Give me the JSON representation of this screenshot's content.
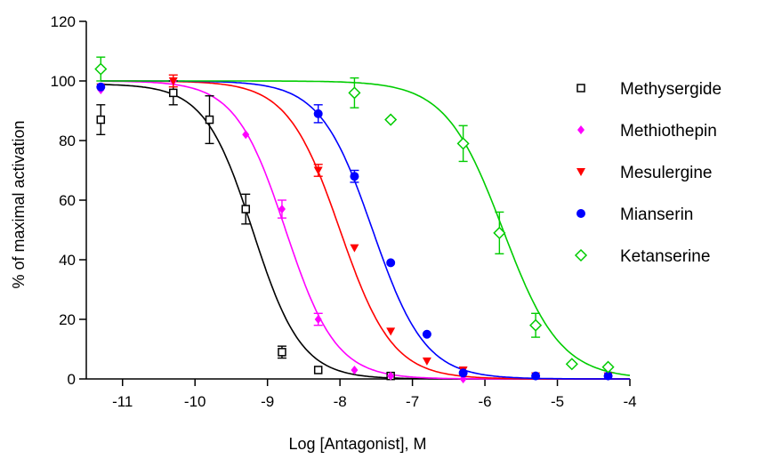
{
  "chart_data": {
    "type": "scatter",
    "xlabel": "Log [Antagonist], M",
    "ylabel": "% of maximal activation",
    "xlim": [
      -11.5,
      -4
    ],
    "ylim": [
      0,
      120
    ],
    "xticks": [
      -11,
      -10,
      -9,
      -8,
      -7,
      -6,
      -5,
      -4
    ],
    "yticks": [
      0,
      20,
      40,
      60,
      80,
      100,
      120
    ],
    "grid": false,
    "legend_position": "right",
    "series": [
      {
        "name": "Methysergide",
        "color": "#000000",
        "marker": "open-square",
        "x": [
          -11.3,
          -10.3,
          -9.8,
          -9.3,
          -8.8,
          -8.3,
          -7.3
        ],
        "y": [
          87,
          96,
          87,
          57,
          9,
          3,
          1
        ],
        "err": [
          5,
          4,
          8,
          5,
          2,
          0,
          0
        ],
        "fit_curve": {
          "top": 99,
          "bottom": 0,
          "log_ic50": -9.2,
          "hill": 1.3
        }
      },
      {
        "name": "Methiothepin",
        "color": "#ff00ff",
        "marker": "diamond",
        "x": [
          -11.3,
          -10.3,
          -9.3,
          -8.8,
          -8.3,
          -7.8,
          -7.3,
          -6.3
        ],
        "y": [
          97,
          100,
          82,
          57,
          20,
          3,
          1,
          0
        ],
        "err": [
          0,
          0,
          0,
          3,
          2,
          0,
          0,
          0
        ],
        "fit_curve": {
          "top": 100,
          "bottom": 0,
          "log_ic50": -8.75,
          "hill": 1.25
        }
      },
      {
        "name": "Mesulergine",
        "color": "#ff0000",
        "marker": "triangle-down",
        "x": [
          -11.3,
          -10.3,
          -8.3,
          -7.8,
          -7.3,
          -6.8,
          -6.3,
          -5.3,
          -4.3
        ],
        "y": [
          98,
          100,
          70,
          44,
          16,
          6,
          3,
          1,
          1
        ],
        "err": [
          0,
          2,
          2,
          0,
          0,
          0,
          0,
          0,
          0
        ],
        "fit_curve": {
          "top": 100,
          "bottom": 0,
          "log_ic50": -8.0,
          "hill": 1.2
        }
      },
      {
        "name": "Mianserin",
        "color": "#0000ff",
        "marker": "filled-circle",
        "x": [
          -11.3,
          -8.3,
          -7.8,
          -7.3,
          -6.8,
          -6.3,
          -5.3,
          -4.3
        ],
        "y": [
          98,
          89,
          68,
          39,
          15,
          2,
          1,
          1
        ],
        "err": [
          0,
          3,
          2,
          0,
          0,
          0,
          0,
          0
        ],
        "fit_curve": {
          "top": 100,
          "bottom": 0,
          "log_ic50": -7.55,
          "hill": 1.2
        }
      },
      {
        "name": "Ketanserine",
        "color": "#00cc00",
        "marker": "open-diamond",
        "x": [
          -11.3,
          -7.8,
          -7.3,
          -6.3,
          -5.8,
          -5.3,
          -4.8,
          -4.3
        ],
        "y": [
          104,
          96,
          87,
          79,
          49,
          18,
          5,
          4
        ],
        "err": [
          4,
          5,
          0,
          6,
          7,
          4,
          0,
          0
        ],
        "fit_curve": {
          "top": 100,
          "bottom": 0,
          "log_ic50": -5.75,
          "hill": 1.1
        }
      }
    ]
  }
}
